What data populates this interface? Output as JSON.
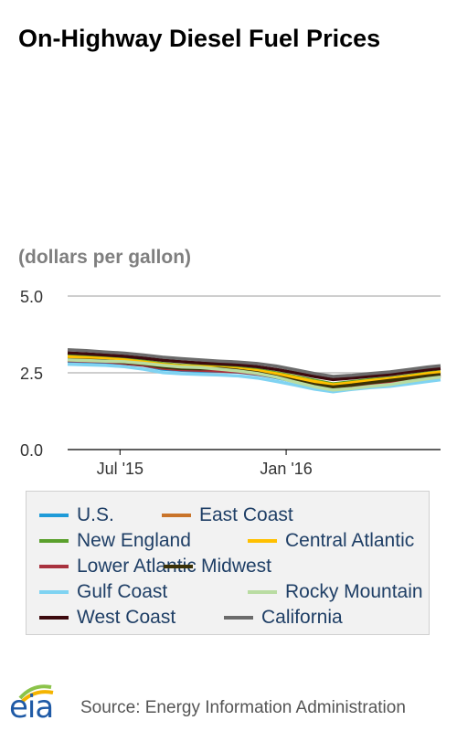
{
  "header": {
    "title": "On-Highway Diesel Fuel Prices"
  },
  "footer": {
    "source": "Source: Energy Information Administration",
    "logo_text": "eia"
  },
  "colors": {
    "U.S.": "#1f9bd8",
    "East Coast": "#c9742a",
    "New England": "#5aa02c",
    "Central Atlantic": "#ffc000",
    "Lower Atlantic": "#a8323e",
    "Midwest": "#3b3107",
    "Gulf Coast": "#7fd3f2",
    "Rocky Mountain": "#b9dca2",
    "West Coast": "#3d0a0e",
    "California": "#6b6b6b"
  },
  "chart_data": {
    "type": "line",
    "units_label": "(dollars per gallon)",
    "ylim": [
      0.0,
      5.0
    ],
    "yticks": [
      "5.0",
      "2.5",
      "0.0"
    ],
    "xticks": [
      "Jul '15",
      "Jan '16"
    ],
    "grid": true,
    "legend_position": "bottom",
    "x": [
      "2015-05-04",
      "2015-05-25",
      "2015-06-15",
      "2015-07-06",
      "2015-07-27",
      "2015-08-17",
      "2015-09-07",
      "2015-09-28",
      "2015-10-19",
      "2015-11-09",
      "2015-11-30",
      "2015-12-21",
      "2016-01-11",
      "2016-02-01",
      "2016-02-22",
      "2016-03-14",
      "2016-04-04",
      "2016-04-25",
      "2016-05-16",
      "2016-06-06",
      "2016-06-20"
    ],
    "series": [
      {
        "name": "U.S.",
        "values": [
          2.88,
          2.86,
          2.84,
          2.8,
          2.74,
          2.62,
          2.58,
          2.56,
          2.55,
          2.52,
          2.45,
          2.34,
          2.21,
          2.08,
          1.98,
          2.06,
          2.12,
          2.17,
          2.25,
          2.34,
          2.38
        ]
      },
      {
        "name": "East Coast",
        "values": [
          2.96,
          2.94,
          2.91,
          2.86,
          2.8,
          2.71,
          2.66,
          2.64,
          2.61,
          2.58,
          2.5,
          2.4,
          2.29,
          2.16,
          2.06,
          2.13,
          2.2,
          2.26,
          2.34,
          2.43,
          2.47
        ]
      },
      {
        "name": "New England",
        "values": [
          3.05,
          3.02,
          2.99,
          2.95,
          2.88,
          2.8,
          2.74,
          2.72,
          2.7,
          2.66,
          2.6,
          2.5,
          2.38,
          2.26,
          2.14,
          2.21,
          2.28,
          2.33,
          2.41,
          2.5,
          2.54
        ]
      },
      {
        "name": "Central Atlantic",
        "values": [
          3.02,
          2.99,
          2.96,
          2.92,
          2.85,
          2.77,
          2.72,
          2.7,
          2.67,
          2.63,
          2.57,
          2.47,
          2.35,
          2.22,
          2.11,
          2.18,
          2.25,
          2.31,
          2.39,
          2.48,
          2.52
        ]
      },
      {
        "name": "Lower Atlantic",
        "values": [
          2.9,
          2.88,
          2.86,
          2.81,
          2.75,
          2.65,
          2.6,
          2.58,
          2.56,
          2.53,
          2.46,
          2.36,
          2.24,
          2.11,
          2.01,
          2.08,
          2.14,
          2.2,
          2.28,
          2.37,
          2.41
        ]
      },
      {
        "name": "Midwest",
        "values": [
          2.93,
          2.91,
          2.89,
          2.84,
          2.79,
          2.69,
          2.64,
          2.63,
          2.64,
          2.58,
          2.5,
          2.38,
          2.25,
          2.12,
          2.04,
          2.1,
          2.18,
          2.25,
          2.32,
          2.4,
          2.44
        ]
      },
      {
        "name": "Gulf Coast",
        "values": [
          2.78,
          2.76,
          2.74,
          2.7,
          2.62,
          2.51,
          2.47,
          2.45,
          2.43,
          2.4,
          2.33,
          2.22,
          2.1,
          1.97,
          1.88,
          1.96,
          2.02,
          2.06,
          2.14,
          2.22,
          2.27
        ]
      },
      {
        "name": "Rocky Mountain",
        "values": [
          2.92,
          2.9,
          2.88,
          2.86,
          2.81,
          2.74,
          2.69,
          2.67,
          2.62,
          2.56,
          2.48,
          2.36,
          2.2,
          2.05,
          1.94,
          1.99,
          2.06,
          2.12,
          2.22,
          2.31,
          2.36
        ]
      },
      {
        "name": "West Coast",
        "values": [
          3.15,
          3.12,
          3.08,
          3.04,
          2.98,
          2.91,
          2.86,
          2.82,
          2.79,
          2.76,
          2.7,
          2.61,
          2.5,
          2.38,
          2.28,
          2.33,
          2.39,
          2.44,
          2.52,
          2.6,
          2.64
        ]
      },
      {
        "name": "California",
        "values": [
          3.25,
          3.22,
          3.18,
          3.14,
          3.08,
          3.01,
          2.96,
          2.92,
          2.88,
          2.85,
          2.8,
          2.72,
          2.6,
          2.48,
          2.38,
          2.42,
          2.48,
          2.53,
          2.61,
          2.69,
          2.73
        ]
      }
    ]
  }
}
